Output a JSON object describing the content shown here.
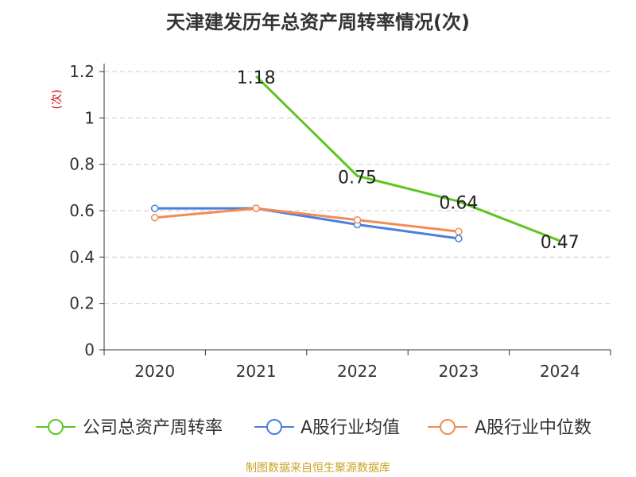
{
  "title": "天津建发历年总资产周转率情况(次)",
  "footer": "制图数据来自恒生聚源数据库",
  "colors": {
    "company": "#5cc61e",
    "avg": "#4a7fdc",
    "median": "#f28b54",
    "unit": "#cc0000"
  },
  "chart_data": {
    "type": "line",
    "title": "天津建发历年总资产周转率情况(次)",
    "ylabel": "(次)",
    "categories": [
      "2020",
      "2021",
      "2022",
      "2023",
      "2024"
    ],
    "ylim": [
      0,
      1.2
    ],
    "yticks": [
      "0",
      "0.2",
      "0.4",
      "0.6",
      "0.8",
      "1",
      "1.2"
    ],
    "grid": true,
    "legend_position": "bottom",
    "series": [
      {
        "name": "公司总资产周转率",
        "values": [
          null,
          1.18,
          0.75,
          0.64,
          0.47
        ],
        "labels": [
          "",
          "1.18",
          "0.75",
          "0.64",
          "0.47"
        ]
      },
      {
        "name": "A股行业均值",
        "values": [
          0.61,
          0.61,
          0.54,
          0.48,
          null
        ]
      },
      {
        "name": "A股行业中位数",
        "values": [
          0.57,
          0.61,
          0.56,
          0.51,
          null
        ]
      }
    ]
  }
}
